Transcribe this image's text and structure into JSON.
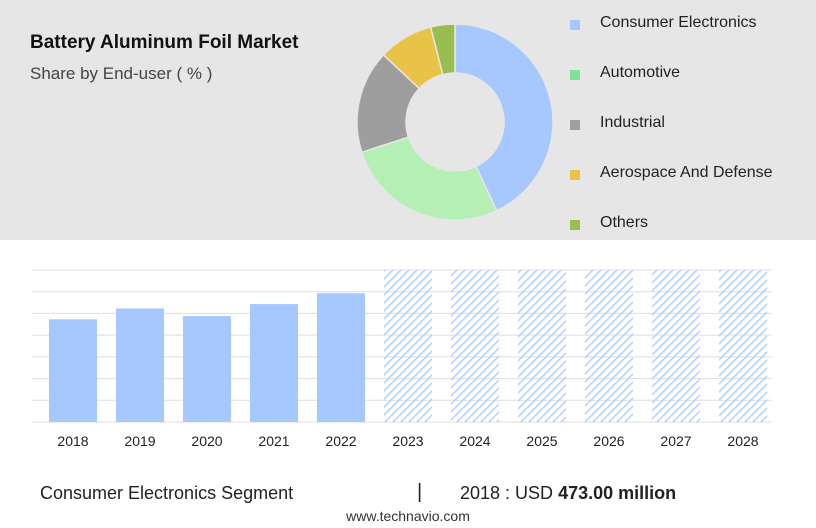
{
  "chart_data": [
    {
      "type": "pie",
      "title": "Battery Aluminum Foil Market",
      "subtitle": "Share by End-user ( % )",
      "categories": [
        "Consumer Electronics",
        "Automotive",
        "Industrial",
        "Aerospace And Defense",
        "Others"
      ],
      "values": [
        43,
        27,
        17,
        9,
        4
      ],
      "colors": [
        "#a6c8ff",
        "#b4f0b4",
        "#9e9e9e",
        "#e8c347",
        "#9abd52"
      ],
      "legend_swatch_colors": [
        "#a6c8ff",
        "#7ee29a",
        "#9e9e9e",
        "#e8c347",
        "#9abd52"
      ],
      "legend_position": "right",
      "hole": 0.5
    },
    {
      "type": "bar",
      "categories": [
        "2018",
        "2019",
        "2020",
        "2021",
        "2022",
        "2023",
        "2024",
        "2025",
        "2026",
        "2027",
        "2028"
      ],
      "values": [
        473,
        523,
        488,
        543,
        593,
        null,
        null,
        null,
        null,
        null,
        null
      ],
      "forecast_categories": [
        "2023",
        "2024",
        "2025",
        "2026",
        "2027",
        "2028"
      ],
      "ylim": [
        0,
        700
      ],
      "grid": true,
      "bar_color": "#a6c8ff",
      "forecast_hatch_color": "#a6c8ff"
    }
  ],
  "footer": {
    "segment": "Consumer Electronics Segment",
    "separator": "|",
    "year_label": "2018 : USD",
    "value": "473.00 million"
  },
  "website": "www.technavio.com"
}
